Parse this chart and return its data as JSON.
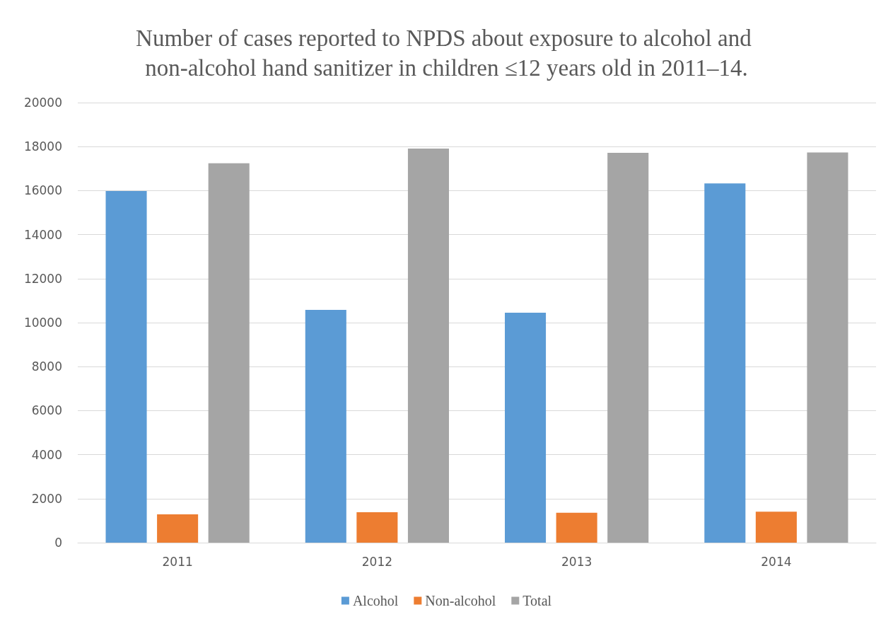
{
  "chart_data": {
    "type": "bar",
    "title": "Number of cases reported to NPDS about exposure to alcohol and non-alcohol hand sanitizer in children ≤12 years old in 2011–14.",
    "categories": [
      "2011",
      "2012",
      "2013",
      "2014"
    ],
    "series": [
      {
        "name": "Alcohol",
        "color": "#5b9bd5",
        "values": [
          15980,
          10580,
          10450,
          16330
        ]
      },
      {
        "name": "Non-alcohol",
        "color": "#ed7d31",
        "values": [
          1290,
          1380,
          1360,
          1410
        ]
      },
      {
        "name": "Total",
        "color": "#a5a5a5",
        "values": [
          17240,
          17910,
          17720,
          17730
        ]
      }
    ],
    "ylim": [
      0,
      20000
    ],
    "yticks": [
      0,
      2000,
      4000,
      6000,
      8000,
      10000,
      12000,
      14000,
      16000,
      18000,
      20000
    ],
    "grid": "y",
    "legend": "bottom"
  }
}
